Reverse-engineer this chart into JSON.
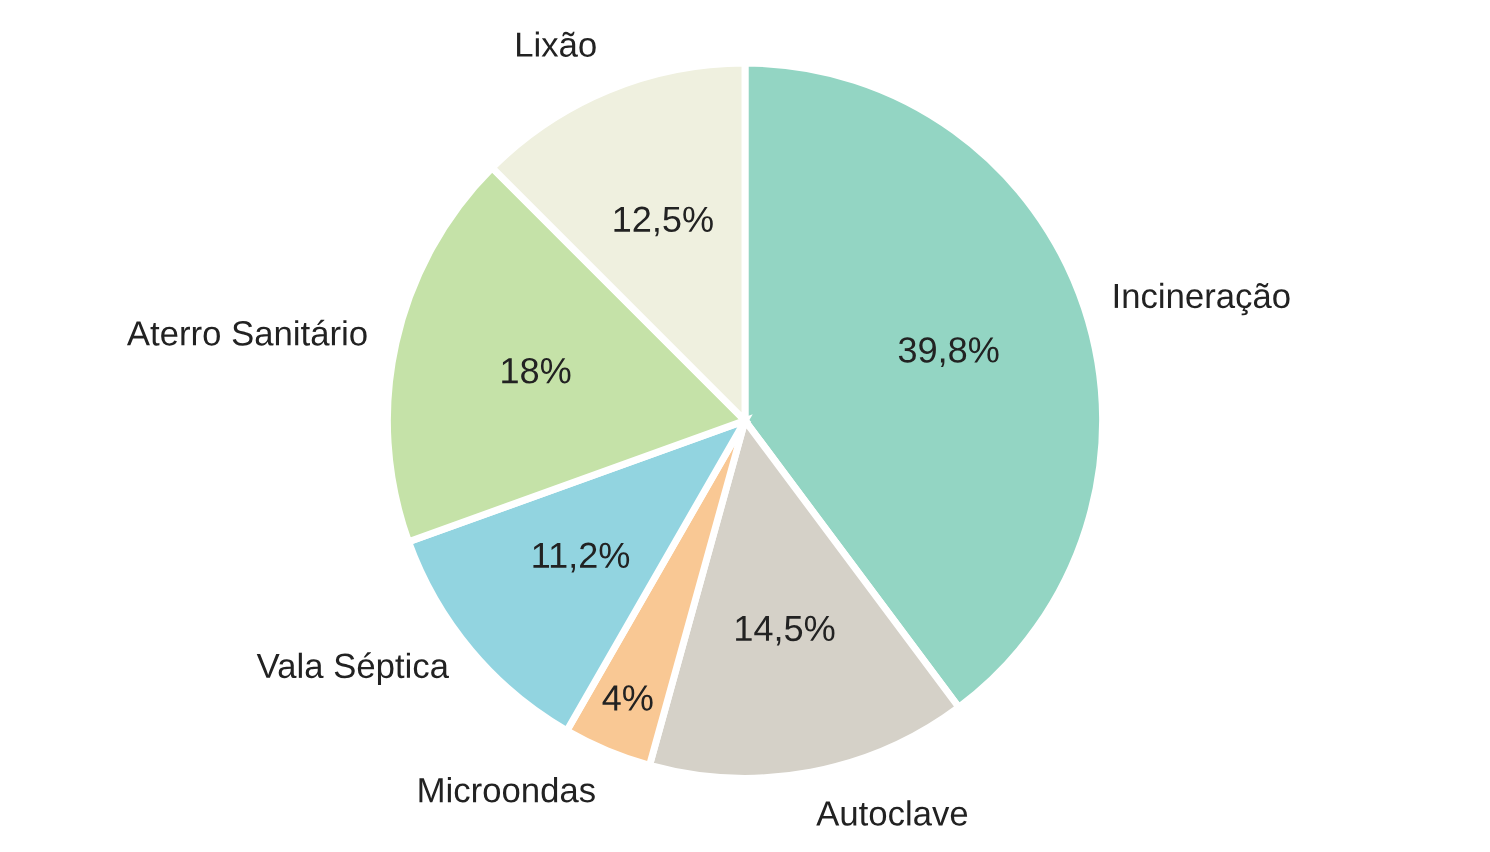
{
  "chart_data": {
    "type": "pie",
    "categories": [
      "Incineração",
      "Autoclave",
      "Microondas",
      "Vala Séptica",
      "Aterro Sanitário",
      "Lixão"
    ],
    "values": [
      39.8,
      14.5,
      4,
      11.2,
      18,
      12.5
    ],
    "value_labels": [
      "39,8%",
      "14,5%",
      "4%",
      "11,2%",
      "18%",
      "12,5%"
    ],
    "colors": [
      "#93d5c3",
      "#d5d1c8",
      "#f9c894",
      "#92d4e0",
      "#c5e2a8",
      "#eff0df"
    ]
  }
}
